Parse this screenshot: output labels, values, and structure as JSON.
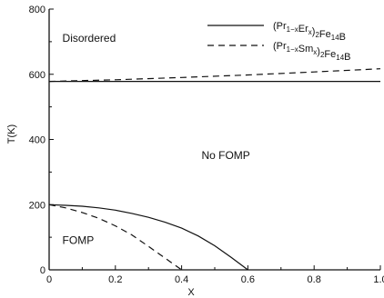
{
  "chart_data": {
    "type": "line",
    "xlabel": "X",
    "ylabel": "T(K)",
    "xlim": [
      0,
      1.0
    ],
    "ylim": [
      0,
      800
    ],
    "x_ticks": [
      0,
      0.2,
      0.4,
      0.6,
      0.8,
      1.0
    ],
    "x_tick_labels": [
      "0",
      "0.2",
      "0.4",
      "0.6",
      "0.8",
      "1.0"
    ],
    "y_ticks": [
      0,
      200,
      400,
      600,
      800
    ],
    "y_tick_labels": [
      "0",
      "200",
      "400",
      "600",
      "800"
    ],
    "grid": false,
    "legend_position": "top-right",
    "region_labels": [
      {
        "text": "Disordered",
        "x": 0.04,
        "y": 700
      },
      {
        "text": "No   FOMP",
        "x": 0.46,
        "y": 340
      },
      {
        "text": "FOMP",
        "x": 0.04,
        "y": 80
      }
    ],
    "series": [
      {
        "style": "solid",
        "legend": {
          "main": "(Pr",
          "sub1": "1−x",
          "mid1": "Er",
          "sub2": "x",
          "mid2": ")",
          "sub3": "2",
          "tail": "Fe",
          "sub4": "14",
          "end": "B"
        },
        "x": [
          0,
          0.05,
          0.1,
          0.15,
          0.2,
          0.25,
          0.3,
          0.35,
          0.4,
          0.45,
          0.5,
          0.55,
          0.6
        ],
        "y": [
          200,
          198,
          195,
          190,
          183,
          173,
          161,
          146,
          128,
          104,
          74,
          38,
          0
        ]
      },
      {
        "style": "solid",
        "x": [
          0,
          1.0
        ],
        "y": [
          578,
          578
        ]
      },
      {
        "style": "dashed",
        "legend": {
          "main": "(Pr",
          "sub1": "1−x",
          "mid1": "Sm",
          "sub2": "x",
          "mid2": ")",
          "sub3": "2",
          "tail": "Fe",
          "sub4": "14",
          "end": "B"
        },
        "x": [
          0,
          0.05,
          0.1,
          0.15,
          0.2,
          0.25,
          0.3,
          0.35,
          0.4
        ],
        "y": [
          200,
          190,
          176,
          158,
          135,
          107,
          72,
          36,
          0
        ]
      },
      {
        "style": "dashed",
        "x": [
          0,
          0.2,
          0.4,
          0.6,
          0.8,
          1.0
        ],
        "y": [
          578,
          583,
          590,
          598,
          607,
          617
        ]
      }
    ]
  }
}
